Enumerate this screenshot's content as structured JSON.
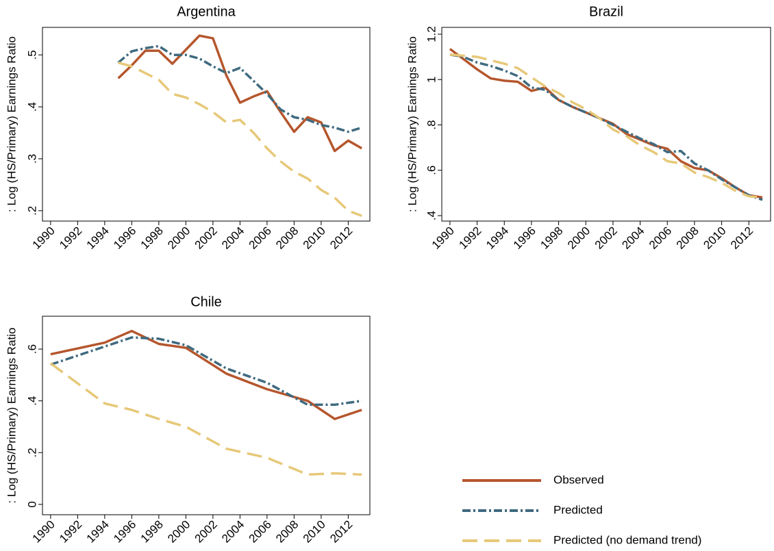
{
  "chart_data": [
    {
      "type": "line",
      "title": "Argentina",
      "ylabel": ": Log (HS/Primary) Earnings Ratio",
      "x": [
        1995,
        1996,
        1997,
        1998,
        1999,
        2000,
        2001,
        2002,
        2003,
        2004,
        2005,
        2006,
        2007,
        2008,
        2009,
        2010,
        2011,
        2012,
        2013
      ],
      "series": [
        {
          "name": "Observed",
          "color": "#b5562d",
          "values": [
            0.455,
            0.48,
            0.508,
            0.508,
            0.483,
            0.51,
            0.537,
            0.532,
            0.46,
            0.408,
            0.42,
            0.43,
            0.39,
            0.352,
            0.38,
            0.37,
            0.315,
            0.335,
            0.32
          ]
        },
        {
          "name": "Predicted",
          "color": "#3f6a7f",
          "values": [
            0.485,
            0.507,
            0.513,
            0.517,
            0.5,
            0.5,
            0.493,
            0.478,
            0.465,
            0.475,
            0.45,
            0.425,
            0.395,
            0.38,
            0.375,
            0.365,
            0.36,
            0.352,
            0.36
          ]
        },
        {
          "name": "Predicted (no demand trend)",
          "color": "#e6c878",
          "values": [
            0.485,
            0.478,
            0.465,
            0.452,
            0.425,
            0.418,
            0.405,
            0.39,
            0.37,
            0.375,
            0.35,
            0.32,
            0.295,
            0.275,
            0.262,
            0.24,
            0.225,
            0.2,
            0.19
          ]
        }
      ],
      "xlim": [
        1989.4,
        2013.6
      ],
      "xticks": [
        1990,
        1992,
        1994,
        1996,
        1998,
        2000,
        2002,
        2004,
        2006,
        2008,
        2010,
        2012
      ],
      "ylim": [
        0.18,
        0.553
      ],
      "yticks": [
        {
          "value": 0.2,
          "label": ".2"
        },
        {
          "value": 0.3,
          "label": ".3"
        },
        {
          "value": 0.4,
          "label": ".4"
        },
        {
          "value": 0.5,
          "label": ".5"
        }
      ]
    },
    {
      "type": "line",
      "title": "Brazil",
      "ylabel": ": Log (HS/Primary) Earnings Ratio",
      "x": [
        1990,
        1991,
        1992,
        1993,
        1994,
        1995,
        1996,
        1997,
        1998,
        1999,
        2000,
        2001,
        2002,
        2003,
        2004,
        2005,
        2006,
        2007,
        2008,
        2009,
        2010,
        2011,
        2012,
        2013
      ],
      "series": [
        {
          "name": "Observed",
          "color": "#b5562d",
          "values": [
            1.135,
            1.09,
            1.045,
            1.005,
            0.995,
            0.99,
            0.95,
            0.965,
            0.91,
            0.88,
            0.855,
            0.83,
            0.805,
            0.76,
            0.735,
            0.71,
            0.695,
            0.64,
            0.61,
            0.6,
            0.565,
            0.525,
            0.49,
            0.48
          ]
        },
        {
          "name": "Predicted",
          "color": "#3f6a7f",
          "values": [
            1.11,
            1.1,
            1.075,
            1.06,
            1.04,
            1.015,
            0.965,
            0.955,
            0.91,
            0.88,
            0.855,
            0.83,
            0.8,
            0.77,
            0.74,
            0.715,
            0.68,
            0.685,
            0.63,
            0.6,
            0.56,
            0.525,
            0.49,
            0.47
          ]
        },
        {
          "name": "Predicted (no demand trend)",
          "color": "#e6c878",
          "values": [
            1.11,
            1.105,
            1.1,
            1.085,
            1.07,
            1.05,
            1.01,
            0.97,
            0.94,
            0.9,
            0.87,
            0.83,
            0.78,
            0.75,
            0.71,
            0.68,
            0.64,
            0.63,
            0.59,
            0.57,
            0.545,
            0.51,
            0.485,
            0.48
          ]
        }
      ],
      "xlim": [
        1989.4,
        2013.6
      ],
      "xticks": [
        1990,
        1992,
        1994,
        1996,
        1998,
        2000,
        2002,
        2004,
        2006,
        2008,
        2010,
        2012
      ],
      "ylim": [
        0.376,
        1.23
      ],
      "yticks": [
        {
          "value": 0.4,
          "label": ".4"
        },
        {
          "value": 0.6,
          "label": ".6"
        },
        {
          "value": 0.8,
          "label": ".8"
        },
        1,
        1.2
      ]
    },
    {
      "type": "line",
      "title": "Chile",
      "ylabel": ": Log (HS/Primary) Earnings Ratio",
      "x": [
        1990,
        1994,
        1996,
        1998,
        2000,
        2003,
        2006,
        2009,
        2011,
        2013
      ],
      "series": [
        {
          "name": "Observed",
          "color": "#b5562d",
          "values": [
            0.58,
            0.625,
            0.67,
            0.62,
            0.605,
            0.505,
            0.445,
            0.4,
            0.33,
            0.365
          ]
        },
        {
          "name": "Predicted",
          "color": "#3f6a7f",
          "values": [
            0.54,
            0.61,
            0.645,
            0.64,
            0.615,
            0.525,
            0.47,
            0.385,
            0.385,
            0.4
          ]
        },
        {
          "name": "Predicted (no demand trend)",
          "color": "#e6c878",
          "values": [
            0.545,
            0.39,
            0.365,
            0.33,
            0.3,
            0.215,
            0.18,
            0.115,
            0.12,
            0.115
          ]
        }
      ],
      "xlim": [
        1989.4,
        2013.6
      ],
      "xticks": [
        1990,
        1992,
        1994,
        1996,
        1998,
        2000,
        2002,
        2004,
        2006,
        2008,
        2010,
        2012
      ],
      "ylim": [
        -0.04,
        0.727
      ],
      "yticks": [
        0,
        {
          "value": 0.2,
          "label": ".2"
        },
        {
          "value": 0.4,
          "label": ".4"
        },
        {
          "value": 0.6,
          "label": ".6"
        }
      ]
    }
  ]
}
